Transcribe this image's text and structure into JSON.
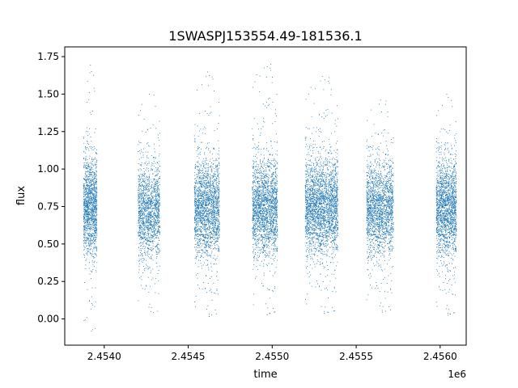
{
  "chart_data": {
    "type": "scatter",
    "title": "1SWASPJ153554.49-181536.1",
    "xlabel": "time",
    "ylabel": "flux",
    "x_offset_label": "1e6",
    "xlim": [
      2453765,
      2456155
    ],
    "ylim": [
      -0.175,
      1.815
    ],
    "x_ticks": [
      2454000,
      2454500,
      2455000,
      2455500,
      2456000
    ],
    "x_tick_labels": [
      "2.4540",
      "2.4545",
      "2.4550",
      "2.4555",
      "2.4560"
    ],
    "y_ticks": [
      0.0,
      0.25,
      0.5,
      0.75,
      1.0,
      1.25,
      1.5,
      1.75
    ],
    "y_tick_labels": [
      "0.00",
      "0.25",
      "0.50",
      "0.75",
      "1.00",
      "1.25",
      "1.50",
      "1.75"
    ],
    "grid": false,
    "legend": "none",
    "marker_color": "#1f77b4",
    "series": [
      {
        "clusters": [
          {
            "x_range": [
              2453875,
              2453955
            ],
            "flux_median": 0.75,
            "flux_min": -0.1,
            "flux_max": 1.7,
            "points": 1400
          },
          {
            "x_range": [
              2454200,
              2454330
            ],
            "flux_median": 0.72,
            "flux_min": 0.02,
            "flux_max": 1.52,
            "points": 1500
          },
          {
            "x_range": [
              2454535,
              2454685
            ],
            "flux_median": 0.74,
            "flux_min": 0.0,
            "flux_max": 1.67,
            "points": 2000
          },
          {
            "x_range": [
              2454880,
              2455030
            ],
            "flux_median": 0.74,
            "flux_min": 0.01,
            "flux_max": 1.73,
            "points": 2000
          },
          {
            "x_range": [
              2455195,
              2455390
            ],
            "flux_median": 0.75,
            "flux_min": 0.02,
            "flux_max": 1.64,
            "points": 2600
          },
          {
            "x_range": [
              2455560,
              2455720
            ],
            "flux_median": 0.74,
            "flux_min": 0.03,
            "flux_max": 1.48,
            "points": 1900
          },
          {
            "x_range": [
              2455975,
              2456095
            ],
            "flux_median": 0.74,
            "flux_min": 0.01,
            "flux_max": 1.52,
            "points": 1800
          }
        ]
      }
    ]
  }
}
